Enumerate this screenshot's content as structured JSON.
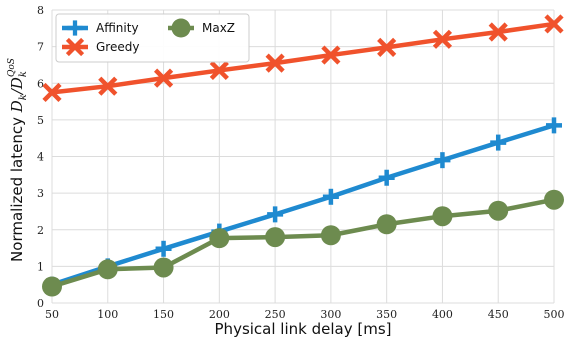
{
  "chart_data": {
    "type": "line",
    "x": [
      50,
      100,
      150,
      200,
      250,
      300,
      350,
      400,
      450,
      500
    ],
    "series": [
      {
        "name": "Affinity",
        "values": [
          0.5,
          1.0,
          1.48,
          1.95,
          2.42,
          2.9,
          3.42,
          3.9,
          4.38,
          4.85
        ],
        "color": "#1f8ad0",
        "marker": "plus"
      },
      {
        "name": "Greedy",
        "values": [
          5.75,
          5.92,
          6.14,
          6.35,
          6.55,
          6.77,
          6.98,
          7.2,
          7.4,
          7.62
        ],
        "color": "#f0522c",
        "marker": "x"
      },
      {
        "name": "MaxZ",
        "values": [
          0.45,
          0.92,
          0.97,
          1.77,
          1.8,
          1.85,
          2.15,
          2.37,
          2.52,
          2.82
        ],
        "color": "#6d8b4f",
        "marker": "circle"
      }
    ],
    "xlabel": "Physical link delay [ms]",
    "ylabel": {
      "text": "Normalized latency ",
      "math_base": "D",
      "math_sub": "k",
      "math_sep": "/",
      "math_base2": "D",
      "math_sub2": "k",
      "math_sup2": "QoS"
    },
    "xlim": [
      50,
      500
    ],
    "ylim": [
      0,
      8
    ],
    "xticks": [
      50,
      100,
      150,
      200,
      250,
      300,
      350,
      400,
      450,
      500
    ],
    "yticks": [
      0,
      1,
      2,
      3,
      4,
      5,
      6,
      7,
      8
    ],
    "grid": true,
    "legend_position": "top-left"
  }
}
